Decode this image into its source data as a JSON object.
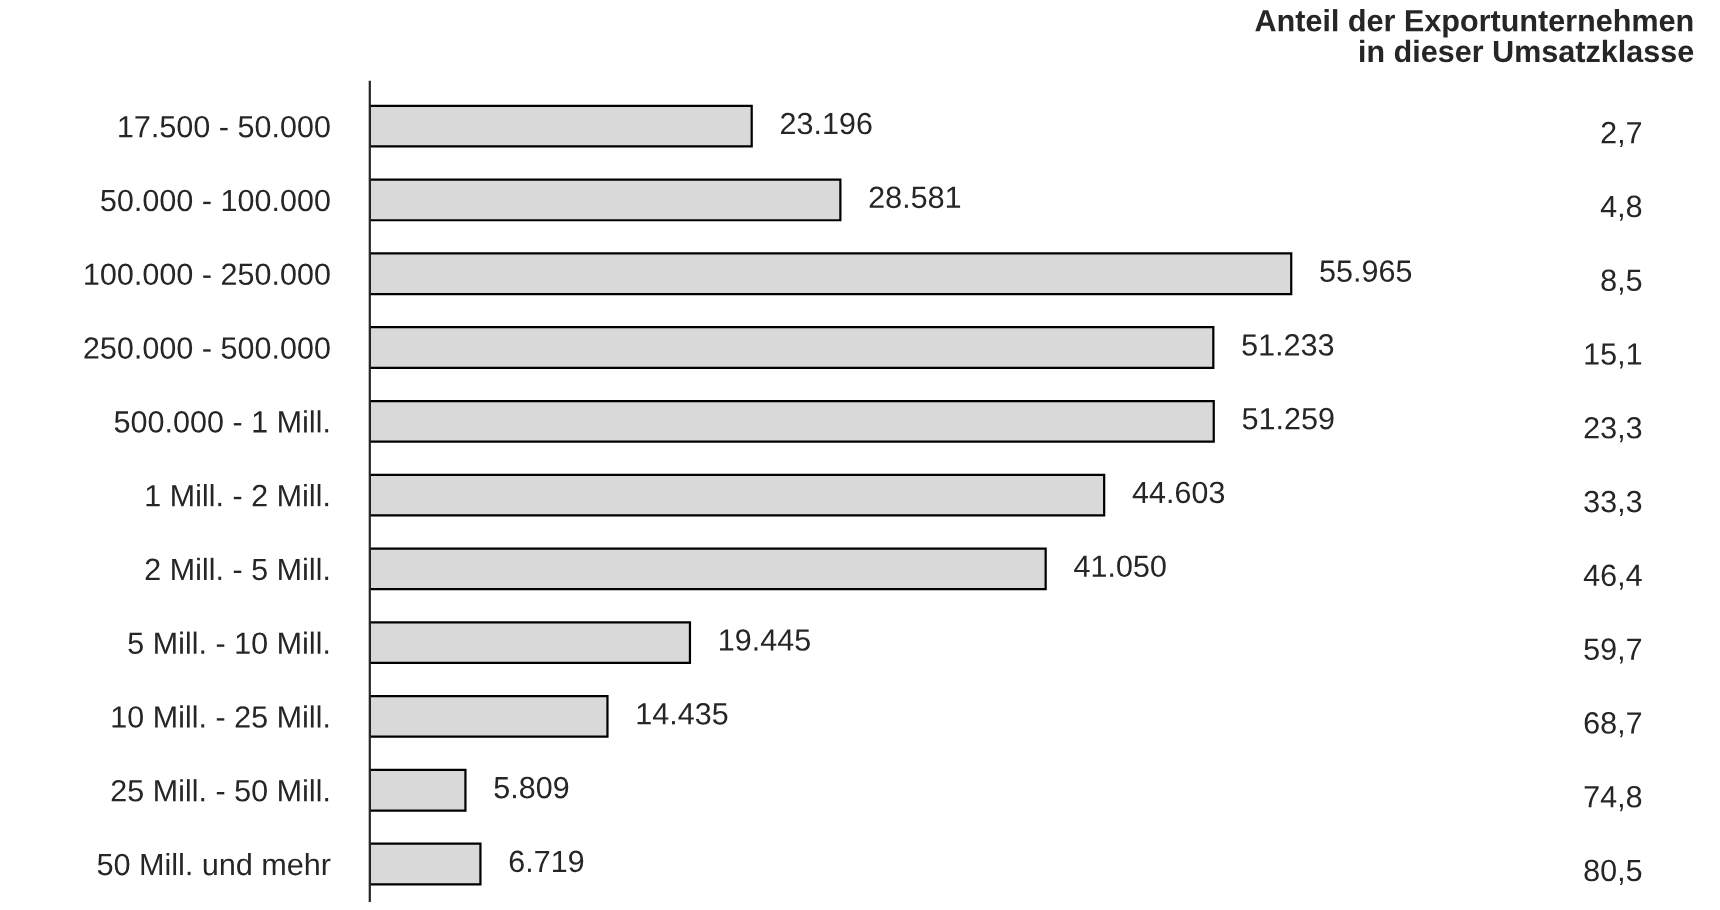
{
  "chart_data": {
    "type": "bar",
    "orientation": "horizontal",
    "categories": [
      "17.500 - 50.000",
      "50.000 - 100.000",
      "100.000 - 250.000",
      "250.000 - 500.000",
      "500.000 - 1 Mill.",
      "1 Mill. - 2 Mill.",
      "2 Mill. - 5 Mill.",
      "5 Mill. - 10 Mill.",
      "10 Mill. - 25 Mill.",
      "25 Mill. - 50 Mill.",
      "50 Mill. und mehr"
    ],
    "values": [
      23196,
      28581,
      55965,
      51233,
      51259,
      44603,
      41050,
      19445,
      14435,
      5809,
      6719
    ],
    "value_labels": [
      "23.196",
      "28.581",
      "55.965",
      "51.233",
      "51.259",
      "44.603",
      "41.050",
      "19.445",
      "14.435",
      "5.809",
      "6.719"
    ],
    "color": "#d9d9d9",
    "annotations": [
      "Anteil der Exportunternehmen\nin dieser Umsatzklasse",
      "2,7",
      "4,8",
      "8,5",
      "15,1",
      "23,3",
      "33,3",
      "46,4",
      "59,7",
      "68,7",
      "74,8",
      "80,5"
    ],
    "grid": false,
    "legend": false
  }
}
